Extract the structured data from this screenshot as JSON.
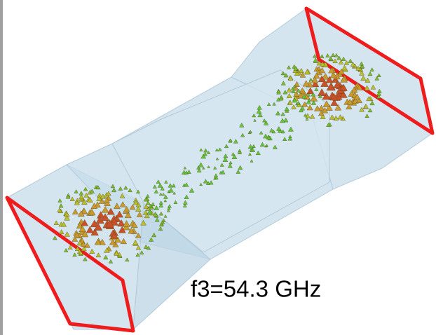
{
  "annotation": "f3=54.3 GHz"
}
